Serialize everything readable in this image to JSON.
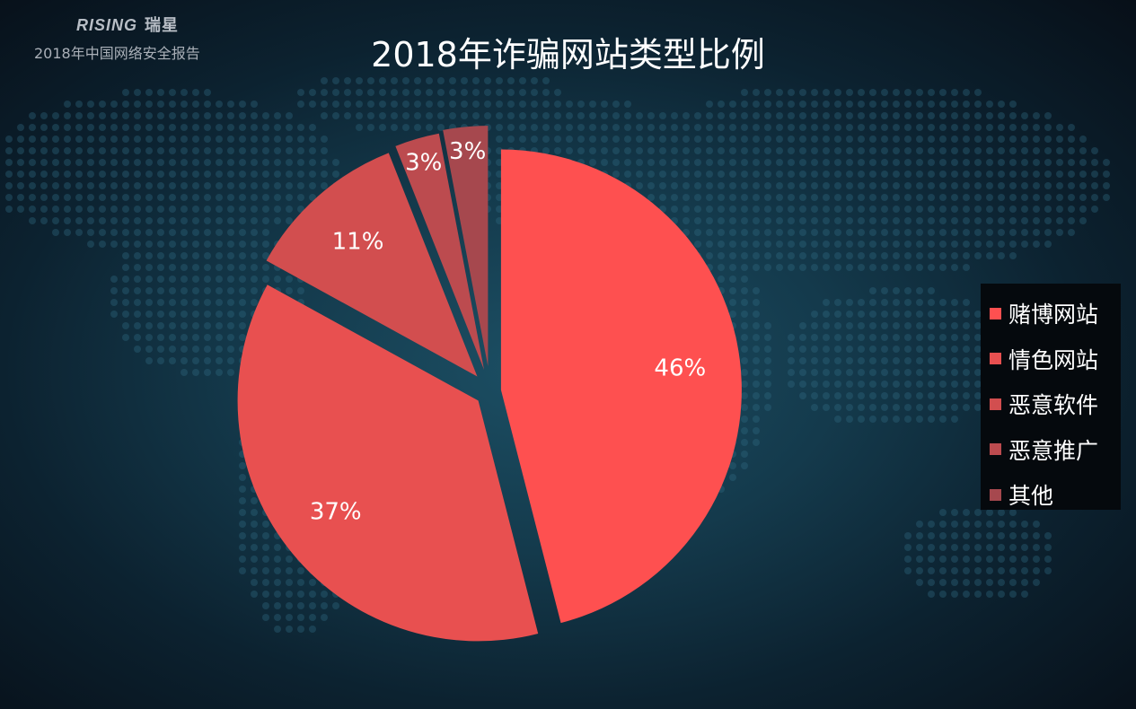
{
  "header": {
    "logo_text": "RISING",
    "logo_cn": "瑞星",
    "report_name": "2018年中国网络安全报告"
  },
  "chart_data": {
    "type": "pie",
    "title": "2018年诈骗网站类型比例",
    "categories": [
      "赌博网站",
      "情色网站",
      "恶意软件",
      "恶意推广",
      "其他"
    ],
    "values": [
      46,
      37,
      11,
      3,
      3
    ],
    "labels": [
      "46%",
      "37%",
      "11%",
      "3%",
      "3%"
    ],
    "colors": [
      "#fe5050",
      "#e85050",
      "#d24e4f",
      "#bc4b4f",
      "#a6484e"
    ],
    "legend_position": "right"
  }
}
